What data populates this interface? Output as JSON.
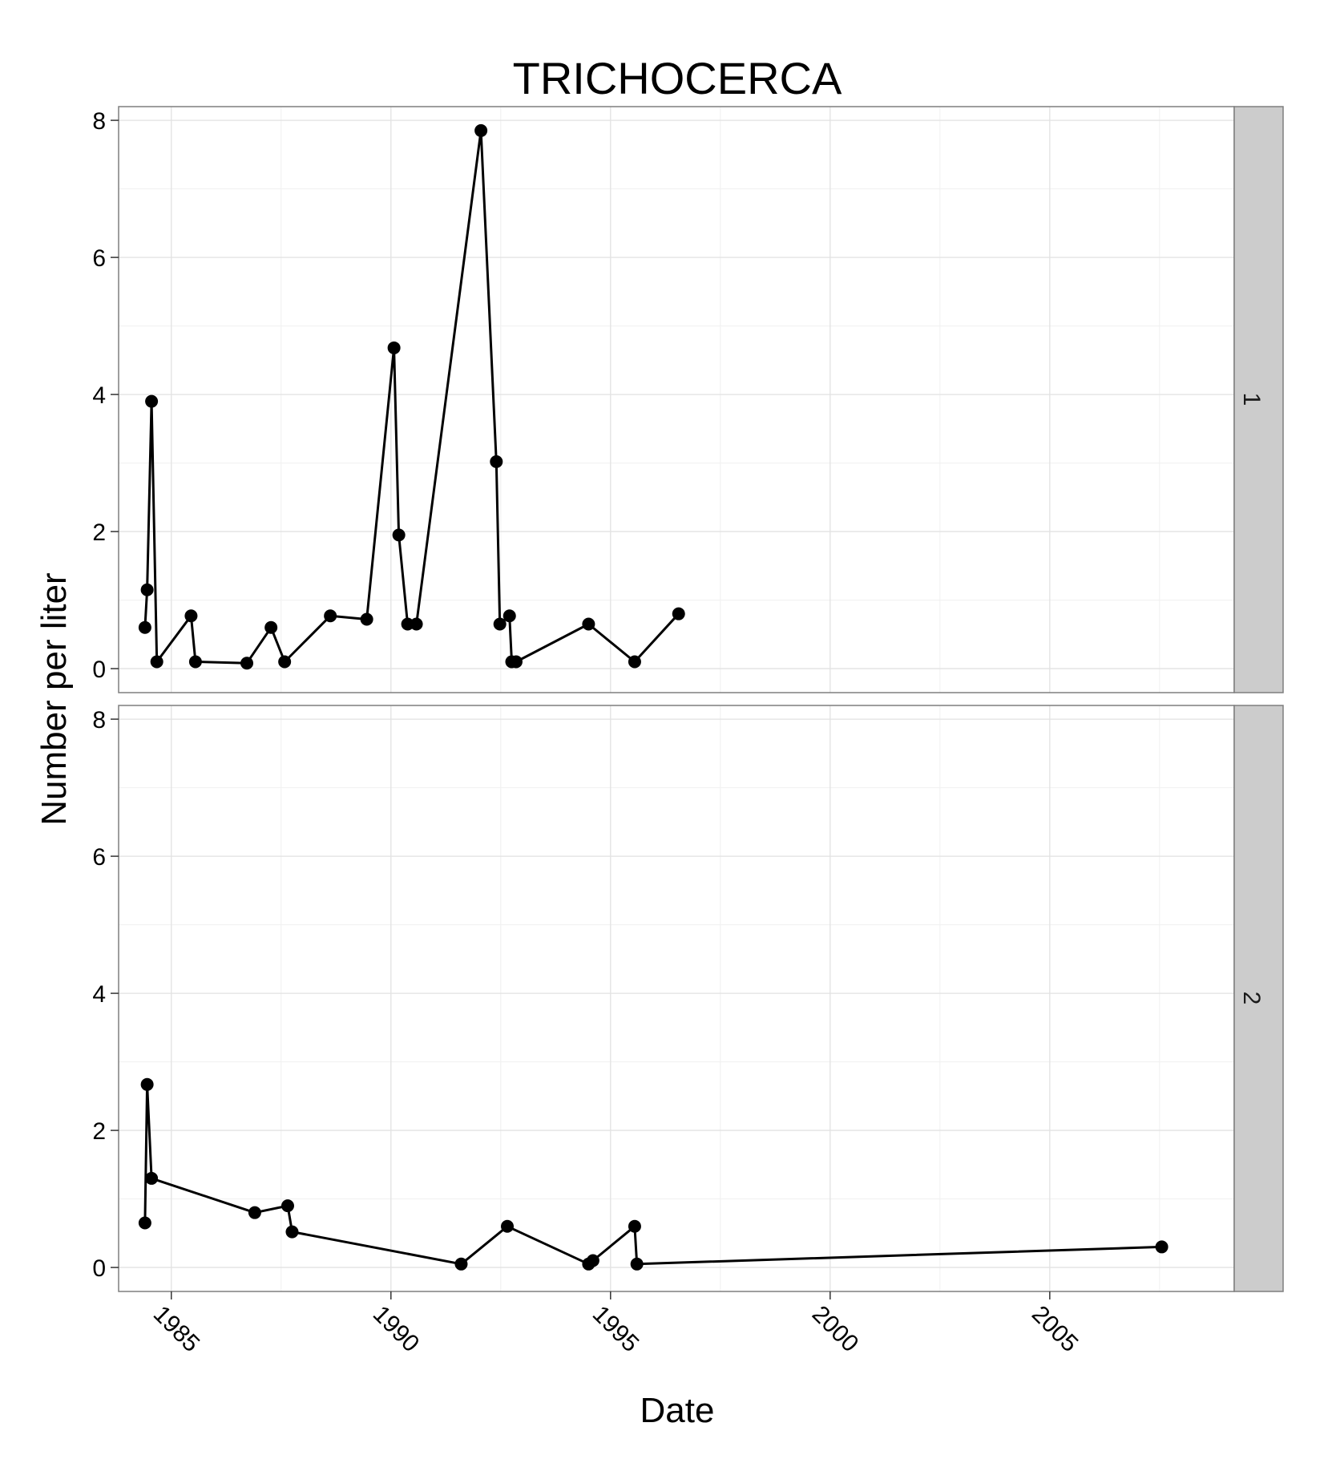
{
  "chart_data": {
    "type": "line",
    "title": "TRICHOCERCA",
    "xlabel": "Date",
    "ylabel": "Number per liter",
    "xlim": [
      1983.8,
      2009.2
    ],
    "ylim": [
      -0.35,
      8.2
    ],
    "x_ticks": [
      1985,
      1990,
      1995,
      2000,
      2005
    ],
    "x_tick_labels": [
      "1985",
      "1990",
      "1995",
      "2000",
      "2005"
    ],
    "y_ticks": [
      0,
      2,
      4,
      6,
      8
    ],
    "y_tick_labels": [
      "0",
      "2",
      "4",
      "6",
      "8"
    ],
    "grid": true,
    "facet_layout": "rows, strip labels on right",
    "panels": [
      {
        "strip_label": "1",
        "x": [
          1984.4,
          1984.45,
          1984.55,
          1984.67,
          1985.45,
          1985.55,
          1986.72,
          1987.27,
          1987.58,
          1988.62,
          1989.45,
          1990.07,
          1990.18,
          1990.38,
          1990.58,
          1992.05,
          1992.4,
          1992.48,
          1992.7,
          1992.75,
          1992.85,
          1994.5,
          1995.55,
          1996.55
        ],
        "y": [
          0.6,
          1.15,
          3.9,
          0.1,
          0.77,
          0.1,
          0.08,
          0.6,
          0.1,
          0.77,
          0.72,
          4.68,
          1.95,
          0.65,
          0.65,
          7.85,
          3.02,
          0.65,
          0.77,
          0.1,
          0.1,
          0.65,
          0.1,
          0.8
        ]
      },
      {
        "strip_label": "2",
        "x": [
          1984.4,
          1984.45,
          1984.55,
          1986.9,
          1987.65,
          1987.75,
          1991.6,
          1992.65,
          1994.5,
          1994.6,
          1995.55,
          1995.6,
          2007.55
        ],
        "y": [
          0.65,
          2.67,
          1.3,
          0.8,
          0.9,
          0.52,
          0.05,
          0.6,
          0.05,
          0.1,
          0.6,
          0.05,
          0.3
        ]
      }
    ]
  }
}
